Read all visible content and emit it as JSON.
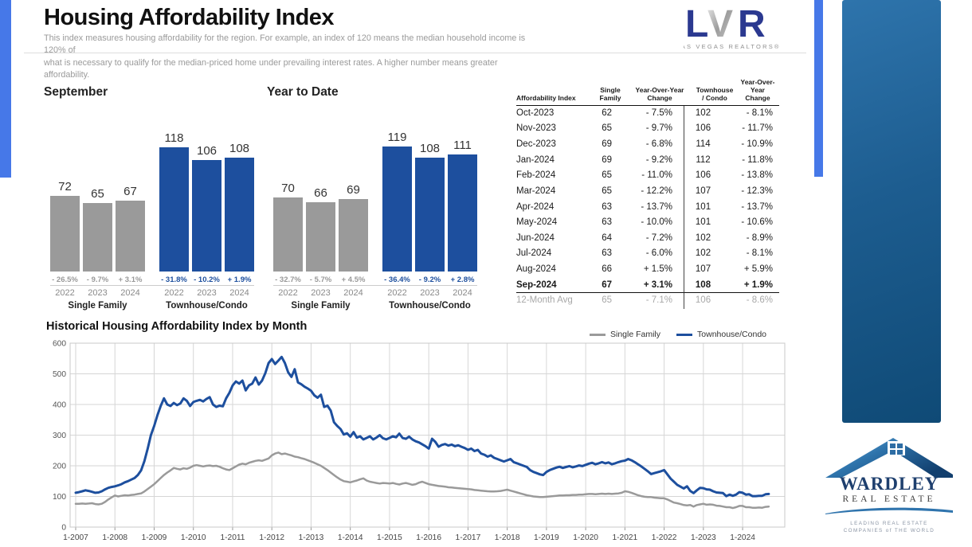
{
  "header": {
    "title": "Housing Affordability Index",
    "subtitle_line1": "This index measures housing affordability for the region. For example, an index of 120 means the median household income is 120% of",
    "subtitle_line2": "what is necessary to qualify for the median-priced home under prevailing interest rates. A higher number means greater affordability.",
    "lvr_logo": {
      "letters": "LVR",
      "subtext": "LAS VEGAS REALTORS®"
    }
  },
  "colors": {
    "townhouse_blue": "#1d4f9e",
    "single_family_gray": "#9a9a9a",
    "accent_stripe_blue": "#4678e8",
    "right_panel_blue": "#1d5d90",
    "lvr_navy": "#2b3990"
  },
  "bar_charts": [
    {
      "title": "September",
      "groups": [
        {
          "label": "Single Family",
          "color": "#9a9a9a",
          "text_color": "#999999",
          "bars": [
            {
              "year": "2022",
              "value": 72,
              "change": "- 26.5%"
            },
            {
              "year": "2023",
              "value": 65,
              "change": "- 9.7%"
            },
            {
              "year": "2024",
              "value": 67,
              "change": "+ 3.1%"
            }
          ]
        },
        {
          "label": "Townhouse/Condo",
          "color": "#1d4f9e",
          "text_color": "#1d4f9e",
          "bars": [
            {
              "year": "2022",
              "value": 118,
              "change": "- 31.8%"
            },
            {
              "year": "2023",
              "value": 106,
              "change": "- 10.2%"
            },
            {
              "year": "2024",
              "value": 108,
              "change": "+ 1.9%"
            }
          ]
        }
      ]
    },
    {
      "title": "Year to Date",
      "groups": [
        {
          "label": "Single Family",
          "color": "#9a9a9a",
          "text_color": "#999999",
          "bars": [
            {
              "year": "2022",
              "value": 70,
              "change": "- 32.7%"
            },
            {
              "year": "2023",
              "value": 66,
              "change": "- 5.7%"
            },
            {
              "year": "2024",
              "value": 69,
              "change": "+ 4.5%"
            }
          ]
        },
        {
          "label": "Townhouse/Condo",
          "color": "#1d4f9e",
          "text_color": "#1d4f9e",
          "bars": [
            {
              "year": "2022",
              "value": 119,
              "change": "- 36.4%"
            },
            {
              "year": "2023",
              "value": 108,
              "change": "- 9.2%"
            },
            {
              "year": "2024",
              "value": 111,
              "change": "+ 2.8%"
            }
          ]
        }
      ]
    }
  ],
  "table": {
    "headers": [
      "Affordability Index",
      "Single\nFamily",
      "Year-Over-Year\nChange",
      "Townhouse\n/ Condo",
      "Year-Over-Year\nChange"
    ],
    "rows": [
      {
        "month": "Oct-2023",
        "sf": "62",
        "sf_yoy": "- 7.5%",
        "tc": "102",
        "tc_yoy": "- 8.1%"
      },
      {
        "month": "Nov-2023",
        "sf": "65",
        "sf_yoy": "- 9.7%",
        "tc": "106",
        "tc_yoy": "- 11.7%"
      },
      {
        "month": "Dec-2023",
        "sf": "69",
        "sf_yoy": "- 6.8%",
        "tc": "114",
        "tc_yoy": "- 10.9%"
      },
      {
        "month": "Jan-2024",
        "sf": "69",
        "sf_yoy": "- 9.2%",
        "tc": "112",
        "tc_yoy": "- 11.8%"
      },
      {
        "month": "Feb-2024",
        "sf": "65",
        "sf_yoy": "- 11.0%",
        "tc": "106",
        "tc_yoy": "- 13.8%"
      },
      {
        "month": "Mar-2024",
        "sf": "65",
        "sf_yoy": "- 12.2%",
        "tc": "107",
        "tc_yoy": "- 12.3%"
      },
      {
        "month": "Apr-2024",
        "sf": "63",
        "sf_yoy": "- 13.7%",
        "tc": "101",
        "tc_yoy": "- 13.7%"
      },
      {
        "month": "May-2024",
        "sf": "63",
        "sf_yoy": "- 10.0%",
        "tc": "101",
        "tc_yoy": "- 10.6%"
      },
      {
        "month": "Jun-2024",
        "sf": "64",
        "sf_yoy": "- 7.2%",
        "tc": "102",
        "tc_yoy": "- 8.9%"
      },
      {
        "month": "Jul-2024",
        "sf": "63",
        "sf_yoy": "- 6.0%",
        "tc": "102",
        "tc_yoy": "- 8.1%"
      },
      {
        "month": "Aug-2024",
        "sf": "66",
        "sf_yoy": "+ 1.5%",
        "tc": "107",
        "tc_yoy": "+ 5.9%"
      },
      {
        "month": "Sep-2024",
        "sf": "67",
        "sf_yoy": "+ 3.1%",
        "tc": "108",
        "tc_yoy": "+ 1.9%",
        "bold": true
      }
    ],
    "avg_row": {
      "month": "12-Month Avg",
      "sf": "65",
      "sf_yoy": "- 7.1%",
      "tc": "106",
      "tc_yoy": "- 8.6%"
    }
  },
  "chart_data": {
    "type": "line",
    "title": "Historical Housing Affordability Index by Month",
    "xlabel": "",
    "ylabel": "",
    "ylim": [
      0,
      600
    ],
    "y_ticks": [
      0,
      100,
      200,
      300,
      400,
      500,
      600
    ],
    "grid": true,
    "legend_position": "top-right",
    "x_start": "1-2007",
    "x_end": "9-2024",
    "x_interval": "monthly",
    "x_tick_labels": [
      "1-2007",
      "1-2008",
      "1-2009",
      "1-2010",
      "1-2011",
      "1-2012",
      "1-2013",
      "1-2014",
      "1-2015",
      "1-2016",
      "1-2017",
      "1-2018",
      "1-2019",
      "1-2020",
      "1-2021",
      "1-2022",
      "1-2023",
      "1-2024"
    ],
    "series": [
      {
        "name": "Single Family",
        "color": "#9a9a9a",
        "monthly_values": [
          76,
          76,
          77,
          76,
          77,
          78,
          75,
          74,
          76,
          82,
          90,
          97,
          103,
          100,
          102,
          104,
          103,
          105,
          106,
          108,
          110,
          116,
          124,
          132,
          140,
          150,
          160,
          170,
          178,
          185,
          193,
          190,
          188,
          192,
          190,
          194,
          200,
          202,
          200,
          198,
          200,
          201,
          199,
          200,
          197,
          192,
          188,
          186,
          192,
          198,
          204,
          207,
          205,
          210,
          213,
          216,
          218,
          216,
          220,
          224,
          234,
          240,
          243,
          238,
          240,
          237,
          234,
          230,
          228,
          225,
          222,
          218,
          214,
          210,
          205,
          200,
          193,
          186,
          178,
          170,
          162,
          155,
          150,
          148,
          146,
          149,
          152,
          156,
          159,
          152,
          148,
          146,
          144,
          142,
          144,
          143,
          142,
          144,
          141,
          139,
          142,
          144,
          141,
          138,
          140,
          145,
          148,
          144,
          140,
          138,
          136,
          134,
          133,
          132,
          130,
          129,
          128,
          127,
          126,
          125,
          124,
          123,
          121,
          120,
          119,
          118,
          117,
          116,
          116,
          117,
          118,
          120,
          122,
          119,
          116,
          113,
          110,
          107,
          104,
          102,
          100,
          99,
          98,
          98,
          99,
          100,
          101,
          102,
          103,
          103,
          104,
          104,
          105,
          105,
          106,
          106,
          107,
          108,
          108,
          107,
          108,
          109,
          108,
          109,
          108,
          109,
          110,
          112,
          117,
          115,
          112,
          108,
          104,
          101,
          99,
          98,
          98,
          96,
          95,
          94,
          94,
          90,
          85,
          80,
          78,
          75,
          72,
          71,
          72,
          67,
          72,
          74,
          76,
          73,
          74,
          73,
          70,
          69,
          67,
          65,
          65,
          62,
          65,
          69,
          69,
          65,
          65,
          63,
          63,
          64,
          63,
          66,
          67
        ]
      },
      {
        "name": "Townhouse/Condo",
        "color": "#1d4f9e",
        "monthly_values": [
          112,
          114,
          117,
          120,
          118,
          115,
          112,
          113,
          117,
          123,
          128,
          131,
          133,
          136,
          140,
          146,
          150,
          155,
          160,
          170,
          185,
          215,
          255,
          300,
          330,
          365,
          395,
          420,
          400,
          395,
          405,
          398,
          403,
          420,
          412,
          395,
          408,
          412,
          415,
          410,
          418,
          424,
          400,
          392,
          396,
          394,
          420,
          438,
          462,
          475,
          468,
          478,
          446,
          462,
          468,
          488,
          465,
          478,
          502,
          535,
          548,
          532,
          543,
          555,
          535,
          505,
          490,
          515,
          472,
          466,
          458,
          452,
          445,
          430,
          422,
          432,
          392,
          396,
          380,
          342,
          330,
          320,
          302,
          306,
          295,
          310,
          292,
          296,
          286,
          291,
          296,
          286,
          292,
          300,
          290,
          286,
          291,
          296,
          293,
          305,
          291,
          288,
          295,
          286,
          280,
          276,
          270,
          264,
          256,
          288,
          278,
          262,
          268,
          271,
          266,
          269,
          264,
          267,
          262,
          258,
          252,
          256,
          248,
          252,
          240,
          236,
          230,
          234,
          226,
          222,
          218,
          214,
          218,
          222,
          212,
          208,
          204,
          200,
          196,
          186,
          180,
          176,
          172,
          170,
          180,
          186,
          190,
          194,
          197,
          193,
          196,
          199,
          195,
          198,
          201,
          199,
          203,
          207,
          210,
          205,
          208,
          212,
          208,
          211,
          205,
          208,
          212,
          215,
          217,
          222,
          218,
          212,
          205,
          198,
          190,
          182,
          173,
          176,
          179,
          182,
          186,
          172,
          158,
          148,
          138,
          132,
          126,
          133,
          118,
          111,
          120,
          128,
          127,
          123,
          122,
          117,
          113,
          112,
          111,
          101,
          106,
          102,
          106,
          114,
          112,
          106,
          107,
          101,
          101,
          102,
          102,
          107,
          108
        ]
      }
    ]
  },
  "wardley_logo": {
    "name": "WARDLEY",
    "subname": "REAL ESTATE",
    "tagline_line1": "LEADING REAL ESTATE",
    "tagline_line2": "COMPANIES of THE WORLD"
  }
}
